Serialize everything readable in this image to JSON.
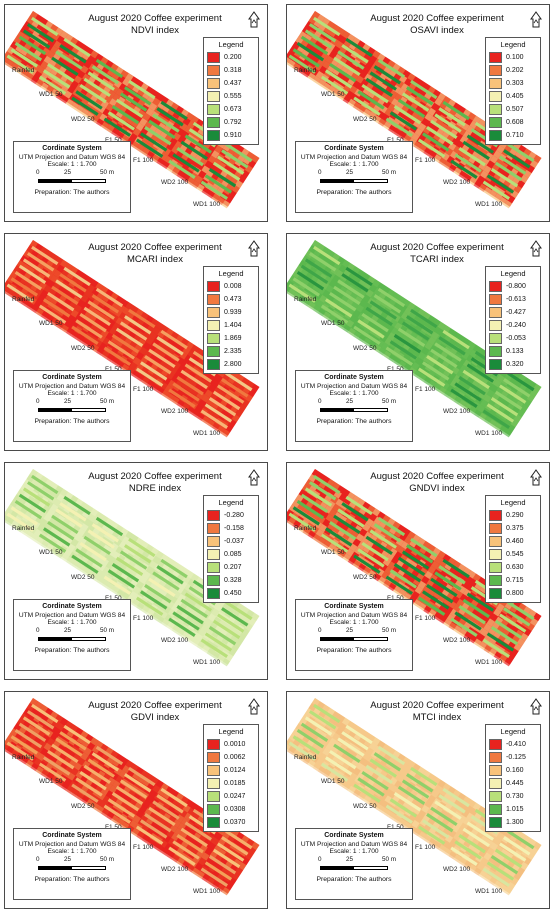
{
  "common": {
    "title": "August 2020 Coffee experiment",
    "legend_title": "Legend",
    "coord_title": "Cordinate System",
    "projection": "UTM Projection and Datum WGS 84",
    "scale_text": "Escale: 1 : 1.700",
    "scale_ticks": [
      "0",
      "25",
      "50 m"
    ],
    "preparation": "Preparation: The authors",
    "labels": {
      "rainfed": "Rainfed",
      "wd1_50": "WD1 50",
      "wd2_50": "WD2 50",
      "f1_50": "F1 50",
      "f1_100": "F1 100",
      "wd2_100": "WD2 100",
      "wd1_100": "WD1 100"
    }
  },
  "panels": [
    {
      "index": "NDVI index",
      "ramp": "rg",
      "legend": [
        "0.200",
        "0.318",
        "0.437",
        "0.555",
        "0.673",
        "0.792",
        "0.910"
      ],
      "colors": [
        "#e8231f",
        "#f0783f",
        "#f8c27a",
        "#f4f1b3",
        "#b8e07a",
        "#5cb84e",
        "#1a8b3a"
      ]
    },
    {
      "index": "OSAVI index",
      "ramp": "rg",
      "legend": [
        "0.100",
        "0.202",
        "0.303",
        "0.405",
        "0.507",
        "0.608",
        "0.710"
      ],
      "colors": [
        "#e8231f",
        "#f0783f",
        "#f8c27a",
        "#f4f1b3",
        "#b8e07a",
        "#5cb84e",
        "#1a8b3a"
      ]
    },
    {
      "index": "MCARI index",
      "ramp": "red",
      "legend": [
        "0.008",
        "0.473",
        "0.939",
        "1.404",
        "1.869",
        "2.335",
        "2.800"
      ],
      "colors": [
        "#e8231f",
        "#f0783f",
        "#f8c27a",
        "#f4f1b3",
        "#b8e07a",
        "#5cb84e",
        "#1a8b3a"
      ]
    },
    {
      "index": "TCARI index",
      "ramp": "green",
      "legend": [
        "-0.800",
        "-0.613",
        "-0.427",
        "-0.240",
        "-0.053",
        "0.133",
        "0.320"
      ],
      "colors": [
        "#e8231f",
        "#f0783f",
        "#f8c27a",
        "#f4f1b3",
        "#b8e07a",
        "#5cb84e",
        "#1a8b3a"
      ]
    },
    {
      "index": "NDRE index",
      "ramp": "yg",
      "legend": [
        "-0.280",
        "-0.158",
        "-0.037",
        "0.085",
        "0.207",
        "0.328",
        "0.450"
      ],
      "colors": [
        "#e8231f",
        "#f0783f",
        "#f8c27a",
        "#f4f1b3",
        "#b8e07a",
        "#5cb84e",
        "#1a8b3a"
      ]
    },
    {
      "index": "GNDVI index",
      "ramp": "rg",
      "legend": [
        "0.290",
        "0.375",
        "0.460",
        "0.545",
        "0.630",
        "0.715",
        "0.800"
      ],
      "colors": [
        "#e8231f",
        "#f0783f",
        "#f8c27a",
        "#f4f1b3",
        "#b8e07a",
        "#5cb84e",
        "#1a8b3a"
      ]
    },
    {
      "index": "GDVI index",
      "ramp": "red2",
      "legend": [
        "0.0010",
        "0.0062",
        "0.0124",
        "0.0185",
        "0.0247",
        "0.0308",
        "0.0370"
      ],
      "colors": [
        "#e8231f",
        "#f0783f",
        "#f8c27a",
        "#f4f1b3",
        "#b8e07a",
        "#5cb84e",
        "#1a8b3a"
      ]
    },
    {
      "index": "MTCI index",
      "ramp": "orange",
      "legend": [
        "-0.410",
        "-0.125",
        "0.160",
        "0.445",
        "0.730",
        "1.015",
        "1.300"
      ],
      "colors": [
        "#e8231f",
        "#f0783f",
        "#f8c27a",
        "#f4f1b3",
        "#b8e07a",
        "#5cb84e",
        "#1a8b3a"
      ]
    }
  ]
}
